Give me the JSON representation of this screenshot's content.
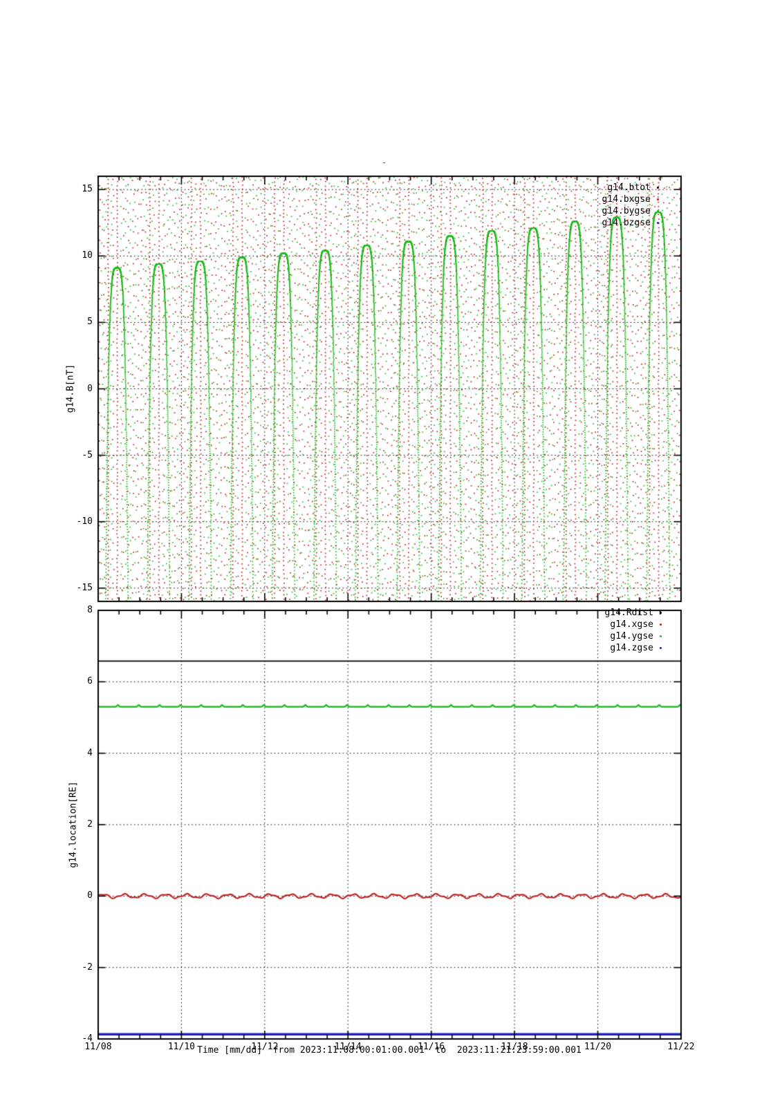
{
  "title": "-",
  "figure": {
    "top_panel": {
      "ylabel": "g14.B[nT]",
      "y_tick_labels": [
        "15",
        "10",
        "5",
        "0",
        "-5",
        "-10",
        "-15"
      ],
      "legend": [
        {
          "label": "g14.btot",
          "color": "#000000"
        },
        {
          "label": "g14.bxgse",
          "color": "#c32222"
        },
        {
          "label": "g14.bygse",
          "color": "#22bd22"
        },
        {
          "label": "g14.bzgse",
          "color": "#2222bb"
        }
      ]
    },
    "bottom_panel": {
      "ylabel": "g14.location[RE]",
      "y_tick_labels": [
        "8",
        "6",
        "4",
        "2",
        "0",
        "-2",
        "-4"
      ],
      "legend": [
        {
          "label": "g14.Rdist",
          "color": "#000000"
        },
        {
          "label": "g14.xgse",
          "color": "#c32222"
        },
        {
          "label": "g14.ygse",
          "color": "#22bd22"
        },
        {
          "label": "g14.zgse",
          "color": "#2222bb"
        }
      ]
    },
    "x_axis": {
      "tick_labels": [
        "11/08",
        "11/10",
        "11/12",
        "11/14",
        "11/16",
        "11/18",
        "11/20",
        "11/22"
      ],
      "label": "Time [mm/dd]  from 2023:11:08:00:01:00.001  to  2023:11:21:23:59:00.001"
    }
  },
  "chart_data": [
    {
      "type": "scatter",
      "title": "g14.B[nT]",
      "ylabel": "g14.B[nT]",
      "ylim": [
        -16,
        16
      ],
      "x_range": [
        "11/08",
        "11/22"
      ],
      "x_days": 14,
      "grid": true,
      "legend_position": "top-right",
      "marker": "dot",
      "series": [
        {
          "name": "g14.btot",
          "color": "#000000",
          "visible_in_range": false,
          "note_from_pixels": "no black samples inside the ±16 nT window"
        },
        {
          "name": "g14.bxgse",
          "color": "#c32222",
          "pattern": "two near-vertical dotted traversals of the full ±16 nT range each day",
          "crossing_day_fractions": [
            0.24,
            0.46
          ],
          "dense_dot_spacing_nT": 0.29
        },
        {
          "name": "g14.bygse",
          "color": "#22bd22",
          "pattern": "one narrow arc per day, rounded peak with steep dotted tails going below -16",
          "peak_day_fraction": 0.45,
          "daily_peaks_nT": [
            9.1,
            9.4,
            9.6,
            9.9,
            10.2,
            10.4,
            10.8,
            11.1,
            11.5,
            11.9,
            12.1,
            12.6,
            12.9,
            13.3
          ]
        },
        {
          "name": "g14.bzgse",
          "color": "#2222bb",
          "visible_in_range": false,
          "note_from_pixels": "no blue samples inside the ±16 nT window"
        }
      ],
      "background_texture": "sparse red and green sample dots form loose vertical columns across each day"
    },
    {
      "type": "line",
      "title": "g14.location[RE]",
      "ylabel": "g14.location[RE]",
      "ylim": [
        -4,
        8
      ],
      "x_range": [
        "11/08",
        "11/22"
      ],
      "x_days": 14,
      "grid": true,
      "legend_position": "top-right",
      "series": [
        {
          "name": "g14.Rdist",
          "color": "#000000",
          "value_RE": 6.58,
          "shape": "constant line"
        },
        {
          "name": "g14.xgse",
          "color": "#c32222",
          "value_RE": 0.0,
          "shape": "gentle ripple",
          "ripple_amplitude_RE": 0.05,
          "ripple_period_days": 0.5
        },
        {
          "name": "g14.ygse",
          "color": "#22bd22",
          "value_RE": 5.3,
          "shape": "constant line with small upward bumps",
          "bump_amplitude_RE": 0.05
        },
        {
          "name": "g14.zgse",
          "color": "#2222bb",
          "value_RE": -3.87,
          "shape": "constant thick line"
        }
      ]
    }
  ]
}
